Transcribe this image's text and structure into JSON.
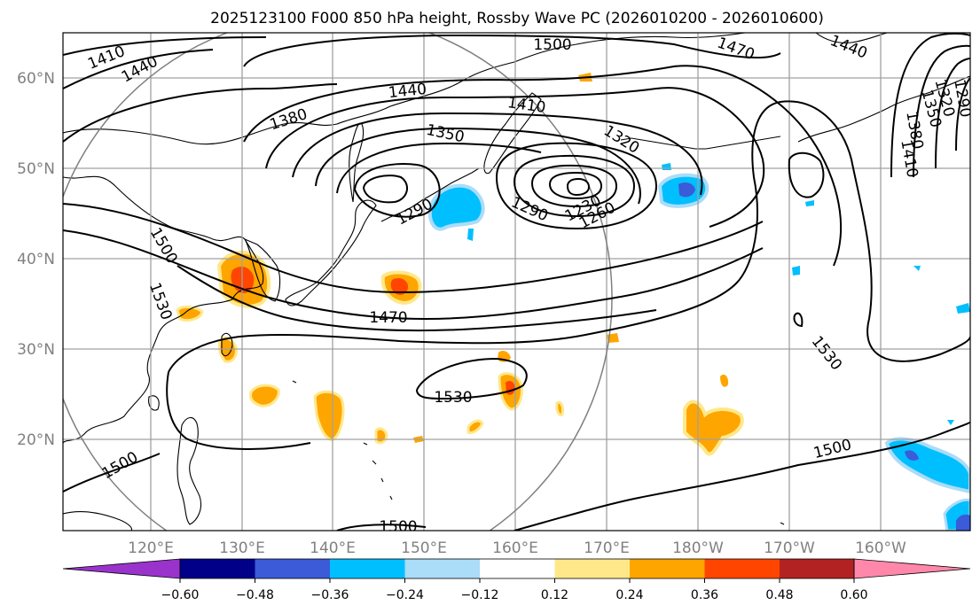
{
  "title": "2025123100 F000 850 hPa height, Rossby Wave PC (2026010200 - 2026010600)",
  "map": {
    "lon_ticks": [
      "120°E",
      "130°E",
      "140°E",
      "150°E",
      "160°E",
      "170°E",
      "180°W",
      "170°W",
      "160°W"
    ],
    "lat_ticks": [
      "60°N",
      "50°N",
      "40°N",
      "30°N",
      "20°N"
    ],
    "lon_range": [
      110,
      210
    ],
    "lat_range": [
      10,
      65
    ],
    "gridlines": true,
    "colors": {
      "coastline": "#000000",
      "grid": "#a0a0a0",
      "circle": "#808080"
    }
  },
  "contour_labels": [
    "1410",
    "1440",
    "1500",
    "1470",
    "1440",
    "1440",
    "1410",
    "1380",
    "1350",
    "1320",
    "1290",
    "1290",
    "1230",
    "1260",
    "1350",
    "1320",
    "1380",
    "1410",
    "1290",
    "1500",
    "1530",
    "1470",
    "1530",
    "1530",
    "1500",
    "1500",
    "1500"
  ],
  "colorbar": {
    "ticks": [
      "−0.60",
      "−0.48",
      "−0.36",
      "−0.24",
      "−0.12",
      "0.12",
      "0.24",
      "0.36",
      "0.48",
      "0.60"
    ],
    "segments": [
      "#9933cc",
      "#000088",
      "#3b5bd8",
      "#00bfff",
      "#abdcf8",
      "#ffffff",
      "#ffe88a",
      "#ffa500",
      "#ff4500",
      "#b22222",
      "#ff88aa"
    ],
    "extend": "both"
  }
}
